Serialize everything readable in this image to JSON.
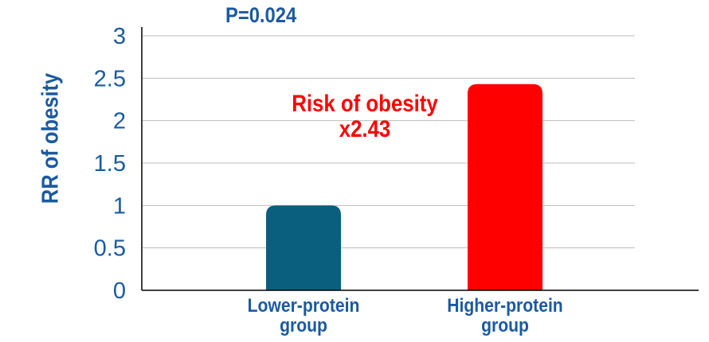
{
  "chart_data": {
    "type": "bar",
    "title": "P=0.024",
    "xlabel": "",
    "ylabel": "RR of obesity",
    "ylim": [
      0,
      3
    ],
    "yticks": [
      {
        "value": 0,
        "label": "0"
      },
      {
        "value": 0.5,
        "label": "0.5"
      },
      {
        "value": 1,
        "label": "1"
      },
      {
        "value": 1.5,
        "label": "1.5"
      },
      {
        "value": 2,
        "label": "2"
      },
      {
        "value": 2.5,
        "label": "2.5"
      },
      {
        "value": 3,
        "label": "3"
      }
    ],
    "categories": [
      [
        "Lower-protein",
        "group"
      ],
      [
        "Higher-protein",
        "group"
      ]
    ],
    "values": [
      1,
      2.43
    ],
    "bar_colors": [
      "#0b5f7e",
      "#ff0000"
    ],
    "grid": true,
    "annotation": [
      "Risk of obesity",
      "x2.43"
    ]
  },
  "colors": {
    "label": "#1a5aa0",
    "annotation": "#ff0000",
    "grid": "#bdbdbd",
    "axis": "#000000"
  }
}
